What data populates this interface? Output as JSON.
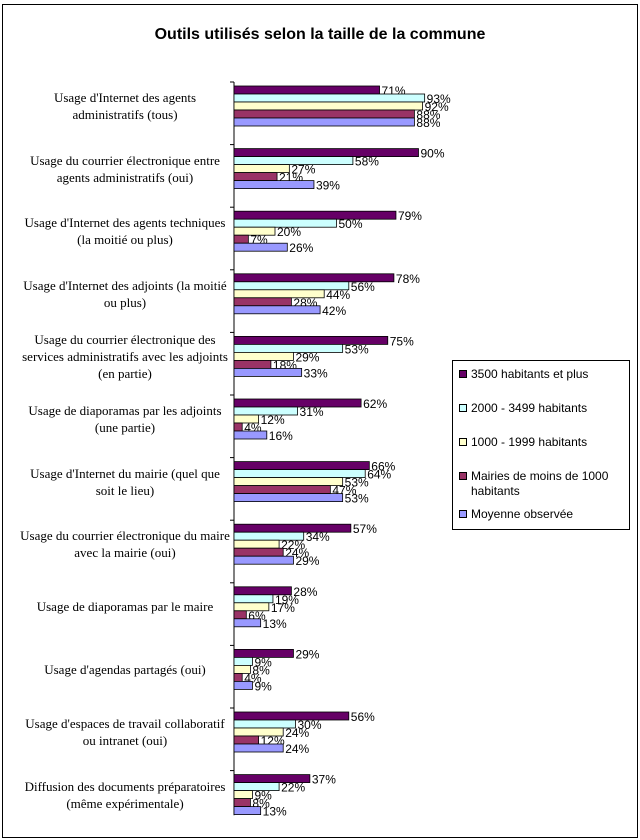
{
  "chart_data": {
    "type": "bar",
    "orientation": "horizontal",
    "title": "Outils utilisés selon la taille de la commune",
    "xlabel": "",
    "ylabel": "",
    "xlim": [
      0,
      100
    ],
    "grid": false,
    "legend_position": "right",
    "categories": [
      "Usage d'Internet des agents administratifs (tous)",
      "Usage du courrier électronique entre agents administratifs (oui)",
      "Usage d'Internet des agents techniques (la moitié ou plus)",
      "Usage d'Internet des adjoints (la moitié ou plus)",
      "Usage du courrier électronique des services administratifs avec les adjoints (en partie)",
      "Usage de diaporamas par les adjoints (une partie)",
      "Usage d'Internet du mairie (quel que soit le lieu)",
      "Usage du courrier électronique du maire avec la mairie (oui)",
      "Usage de diaporamas par le maire",
      "Usage d'agendas partagés (oui)",
      "Usage d'espaces de travail collaboratif ou intranet (oui)",
      "Diffusion des documents préparatoires (même expérimentale)"
    ],
    "series": [
      {
        "name": "3500 habitants et plus",
        "color": "#660066",
        "values": [
          71,
          90,
          79,
          78,
          75,
          62,
          66,
          57,
          28,
          29,
          56,
          37
        ]
      },
      {
        "name": "2000 - 3499 habitants",
        "color": "#CCFFFF",
        "values": [
          93,
          58,
          50,
          56,
          53,
          31,
          64,
          34,
          19,
          9,
          30,
          22
        ]
      },
      {
        "name": "1000 - 1999 habitants",
        "color": "#FFFFCC",
        "values": [
          92,
          27,
          20,
          44,
          29,
          12,
          53,
          22,
          17,
          8,
          24,
          9
        ]
      },
      {
        "name": "Mairies de moins de 1000 habitants",
        "color": "#993366",
        "values": [
          88,
          21,
          7,
          28,
          18,
          4,
          47,
          24,
          6,
          4,
          12,
          8
        ]
      },
      {
        "name": "Moyenne observée",
        "color": "#9999FF",
        "values": [
          88,
          39,
          26,
          42,
          33,
          16,
          53,
          29,
          13,
          9,
          24,
          13
        ]
      }
    ],
    "data_label_suffix": "%"
  }
}
